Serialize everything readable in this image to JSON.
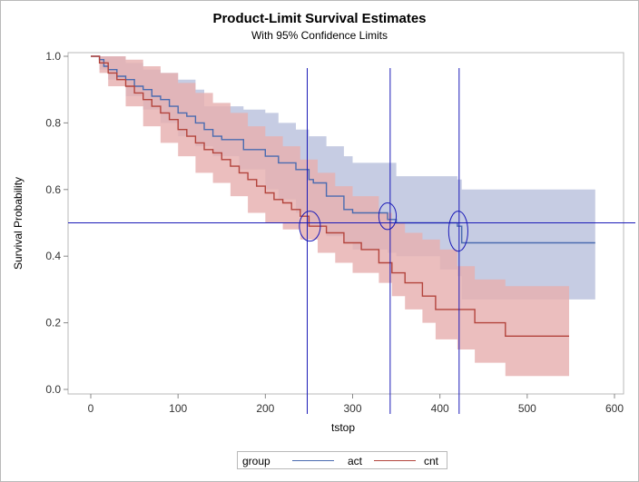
{
  "chart_data": {
    "type": "line",
    "title": "Product-Limit Survival Estimates",
    "subtitle": "With 95% Confidence Limits",
    "xlabel": "tstop",
    "ylabel": "Survival Probability",
    "xlim": [
      -30,
      610
    ],
    "ylim": [
      0,
      1.0
    ],
    "xticks": [
      0,
      100,
      200,
      300,
      400,
      500,
      600
    ],
    "yticks": [
      0.0,
      0.2,
      0.4,
      0.6,
      0.8,
      1.0
    ],
    "ytick_labels": [
      "0.0",
      "0.2",
      "0.4",
      "0.6",
      "0.8",
      "1.0"
    ],
    "reference_lines": {
      "horizontal": 0.5,
      "vertical": [
        248,
        343,
        422
      ]
    },
    "markers": [
      {
        "x": 251,
        "y": 0.49,
        "rx": 12,
        "ry": 0.045
      },
      {
        "x": 340,
        "y": 0.52,
        "rx": 10,
        "ry": 0.04
      },
      {
        "x": 421,
        "y": 0.475,
        "rx": 11,
        "ry": 0.06
      }
    ],
    "legend_title": "group",
    "series": [
      {
        "name": "act",
        "color": "#4a6bb0",
        "band_color": "#b9c1dd",
        "steps": [
          [
            0,
            1.0
          ],
          [
            10,
            0.99
          ],
          [
            15,
            0.97
          ],
          [
            20,
            0.96
          ],
          [
            30,
            0.94
          ],
          [
            40,
            0.93
          ],
          [
            50,
            0.91
          ],
          [
            60,
            0.9
          ],
          [
            70,
            0.88
          ],
          [
            80,
            0.87
          ],
          [
            90,
            0.85
          ],
          [
            100,
            0.83
          ],
          [
            110,
            0.82
          ],
          [
            120,
            0.8
          ],
          [
            130,
            0.78
          ],
          [
            140,
            0.76
          ],
          [
            150,
            0.75
          ],
          [
            170,
            0.75
          ],
          [
            175,
            0.72
          ],
          [
            200,
            0.7
          ],
          [
            215,
            0.68
          ],
          [
            235,
            0.66
          ],
          [
            250,
            0.63
          ],
          [
            255,
            0.62
          ],
          [
            270,
            0.58
          ],
          [
            290,
            0.54
          ],
          [
            300,
            0.53
          ],
          [
            340,
            0.51
          ],
          [
            350,
            0.5
          ],
          [
            420,
            0.49
          ],
          [
            425,
            0.44
          ],
          [
            578,
            0.44
          ]
        ],
        "upper": [
          [
            0,
            1.0
          ],
          [
            20,
            1.0
          ],
          [
            40,
            0.98
          ],
          [
            60,
            0.96
          ],
          [
            80,
            0.95
          ],
          [
            100,
            0.93
          ],
          [
            120,
            0.9
          ],
          [
            130,
            0.85
          ],
          [
            170,
            0.85
          ],
          [
            175,
            0.84
          ],
          [
            200,
            0.83
          ],
          [
            215,
            0.8
          ],
          [
            235,
            0.78
          ],
          [
            250,
            0.76
          ],
          [
            270,
            0.73
          ],
          [
            290,
            0.7
          ],
          [
            300,
            0.68
          ],
          [
            350,
            0.64
          ],
          [
            420,
            0.63
          ],
          [
            425,
            0.6
          ],
          [
            578,
            0.6
          ]
        ],
        "lower": [
          [
            0,
            1.0
          ],
          [
            10,
            0.96
          ],
          [
            20,
            0.93
          ],
          [
            40,
            0.88
          ],
          [
            60,
            0.84
          ],
          [
            80,
            0.8
          ],
          [
            100,
            0.76
          ],
          [
            120,
            0.73
          ],
          [
            140,
            0.7
          ],
          [
            170,
            0.66
          ],
          [
            200,
            0.6
          ],
          [
            215,
            0.57
          ],
          [
            235,
            0.53
          ],
          [
            250,
            0.49
          ],
          [
            270,
            0.46
          ],
          [
            290,
            0.44
          ],
          [
            300,
            0.42
          ],
          [
            340,
            0.41
          ],
          [
            350,
            0.4
          ],
          [
            400,
            0.36
          ],
          [
            420,
            0.34
          ],
          [
            425,
            0.27
          ],
          [
            578,
            0.27
          ]
        ]
      },
      {
        "name": "cnt",
        "color": "#b3443c",
        "band_color": "#e7b0b0",
        "steps": [
          [
            0,
            1.0
          ],
          [
            10,
            0.98
          ],
          [
            20,
            0.95
          ],
          [
            30,
            0.93
          ],
          [
            40,
            0.91
          ],
          [
            50,
            0.89
          ],
          [
            60,
            0.87
          ],
          [
            70,
            0.85
          ],
          [
            80,
            0.83
          ],
          [
            90,
            0.81
          ],
          [
            100,
            0.78
          ],
          [
            110,
            0.76
          ],
          [
            120,
            0.74
          ],
          [
            130,
            0.72
          ],
          [
            140,
            0.71
          ],
          [
            150,
            0.69
          ],
          [
            160,
            0.67
          ],
          [
            170,
            0.65
          ],
          [
            180,
            0.63
          ],
          [
            190,
            0.61
          ],
          [
            200,
            0.59
          ],
          [
            210,
            0.57
          ],
          [
            220,
            0.56
          ],
          [
            230,
            0.54
          ],
          [
            240,
            0.52
          ],
          [
            250,
            0.49
          ],
          [
            270,
            0.47
          ],
          [
            290,
            0.44
          ],
          [
            310,
            0.42
          ],
          [
            330,
            0.38
          ],
          [
            345,
            0.35
          ],
          [
            360,
            0.32
          ],
          [
            380,
            0.28
          ],
          [
            395,
            0.24
          ],
          [
            420,
            0.24
          ],
          [
            440,
            0.2
          ],
          [
            475,
            0.16
          ],
          [
            548,
            0.16
          ]
        ],
        "upper": [
          [
            0,
            1.0
          ],
          [
            20,
            1.0
          ],
          [
            40,
            0.99
          ],
          [
            60,
            0.97
          ],
          [
            80,
            0.95
          ],
          [
            100,
            0.92
          ],
          [
            120,
            0.89
          ],
          [
            140,
            0.86
          ],
          [
            160,
            0.83
          ],
          [
            180,
            0.79
          ],
          [
            200,
            0.76
          ],
          [
            220,
            0.73
          ],
          [
            240,
            0.69
          ],
          [
            260,
            0.65
          ],
          [
            280,
            0.61
          ],
          [
            300,
            0.58
          ],
          [
            330,
            0.53
          ],
          [
            345,
            0.5
          ],
          [
            360,
            0.47
          ],
          [
            380,
            0.45
          ],
          [
            400,
            0.42
          ],
          [
            420,
            0.37
          ],
          [
            440,
            0.33
          ],
          [
            475,
            0.31
          ],
          [
            548,
            0.28
          ]
        ],
        "lower": [
          [
            0,
            1.0
          ],
          [
            10,
            0.95
          ],
          [
            20,
            0.91
          ],
          [
            40,
            0.85
          ],
          [
            60,
            0.79
          ],
          [
            80,
            0.74
          ],
          [
            100,
            0.7
          ],
          [
            120,
            0.65
          ],
          [
            140,
            0.62
          ],
          [
            160,
            0.58
          ],
          [
            180,
            0.53
          ],
          [
            200,
            0.5
          ],
          [
            220,
            0.48
          ],
          [
            240,
            0.45
          ],
          [
            260,
            0.41
          ],
          [
            280,
            0.38
          ],
          [
            300,
            0.35
          ],
          [
            330,
            0.32
          ],
          [
            345,
            0.28
          ],
          [
            360,
            0.24
          ],
          [
            380,
            0.2
          ],
          [
            395,
            0.15
          ],
          [
            420,
            0.12
          ],
          [
            440,
            0.08
          ],
          [
            475,
            0.04
          ],
          [
            548,
            0.04
          ]
        ]
      }
    ]
  }
}
